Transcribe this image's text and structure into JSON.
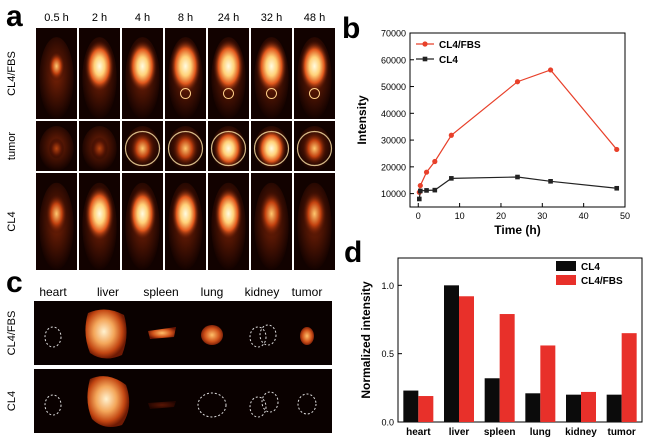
{
  "panel_a": {
    "letter": "a",
    "times": [
      "0.5 h",
      "2 h",
      "4 h",
      "8 h",
      "24 h",
      "32 h",
      "48 h"
    ],
    "rows": [
      "CL4/FBS",
      "tumor",
      "CL4"
    ]
  },
  "panel_c": {
    "letter": "c",
    "organs": [
      "heart",
      "liver",
      "spleen",
      "lung",
      "kidney",
      "tumor"
    ],
    "rows": [
      "CL4/FBS",
      "CL4"
    ]
  },
  "chart_data": [
    {
      "panel": "b",
      "type": "line",
      "xlabel": "Time (h)",
      "ylabel": "Intensity",
      "xlim": [
        -2,
        50
      ],
      "ylim": [
        5000,
        70000
      ],
      "xticks": [
        0,
        10,
        20,
        30,
        40,
        50
      ],
      "yticks": [
        10000,
        20000,
        30000,
        40000,
        50000,
        60000,
        70000
      ],
      "legend_position": "top-left",
      "series": [
        {
          "name": "CL4/FBS",
          "color": "#e8402a",
          "marker": "circle",
          "x": [
            0.25,
            0.5,
            2,
            4,
            8,
            24,
            32,
            48
          ],
          "y": [
            10500,
            13000,
            18000,
            22000,
            31800,
            51800,
            56200,
            26500
          ]
        },
        {
          "name": "CL4",
          "color": "#222222",
          "marker": "square",
          "x": [
            0.25,
            0.5,
            2,
            4,
            8,
            24,
            32,
            48
          ],
          "y": [
            8000,
            11000,
            11200,
            11300,
            15700,
            16200,
            14600,
            12000
          ]
        }
      ]
    },
    {
      "panel": "d",
      "type": "bar",
      "ylabel": "Normalized intensity",
      "ylim": [
        0,
        1.2
      ],
      "yticks": [
        0.0,
        0.5,
        1.0
      ],
      "legend_position": "top-right",
      "categories": [
        "heart",
        "liver",
        "spleen",
        "lung",
        "kidney",
        "tumor"
      ],
      "series": [
        {
          "name": "CL4",
          "color": "#0b0b0b",
          "values": [
            0.23,
            1.0,
            0.32,
            0.21,
            0.2,
            0.2
          ]
        },
        {
          "name": "CL4/FBS",
          "color": "#e8302a",
          "values": [
            0.19,
            0.92,
            0.79,
            0.56,
            0.22,
            0.65
          ]
        }
      ]
    }
  ]
}
